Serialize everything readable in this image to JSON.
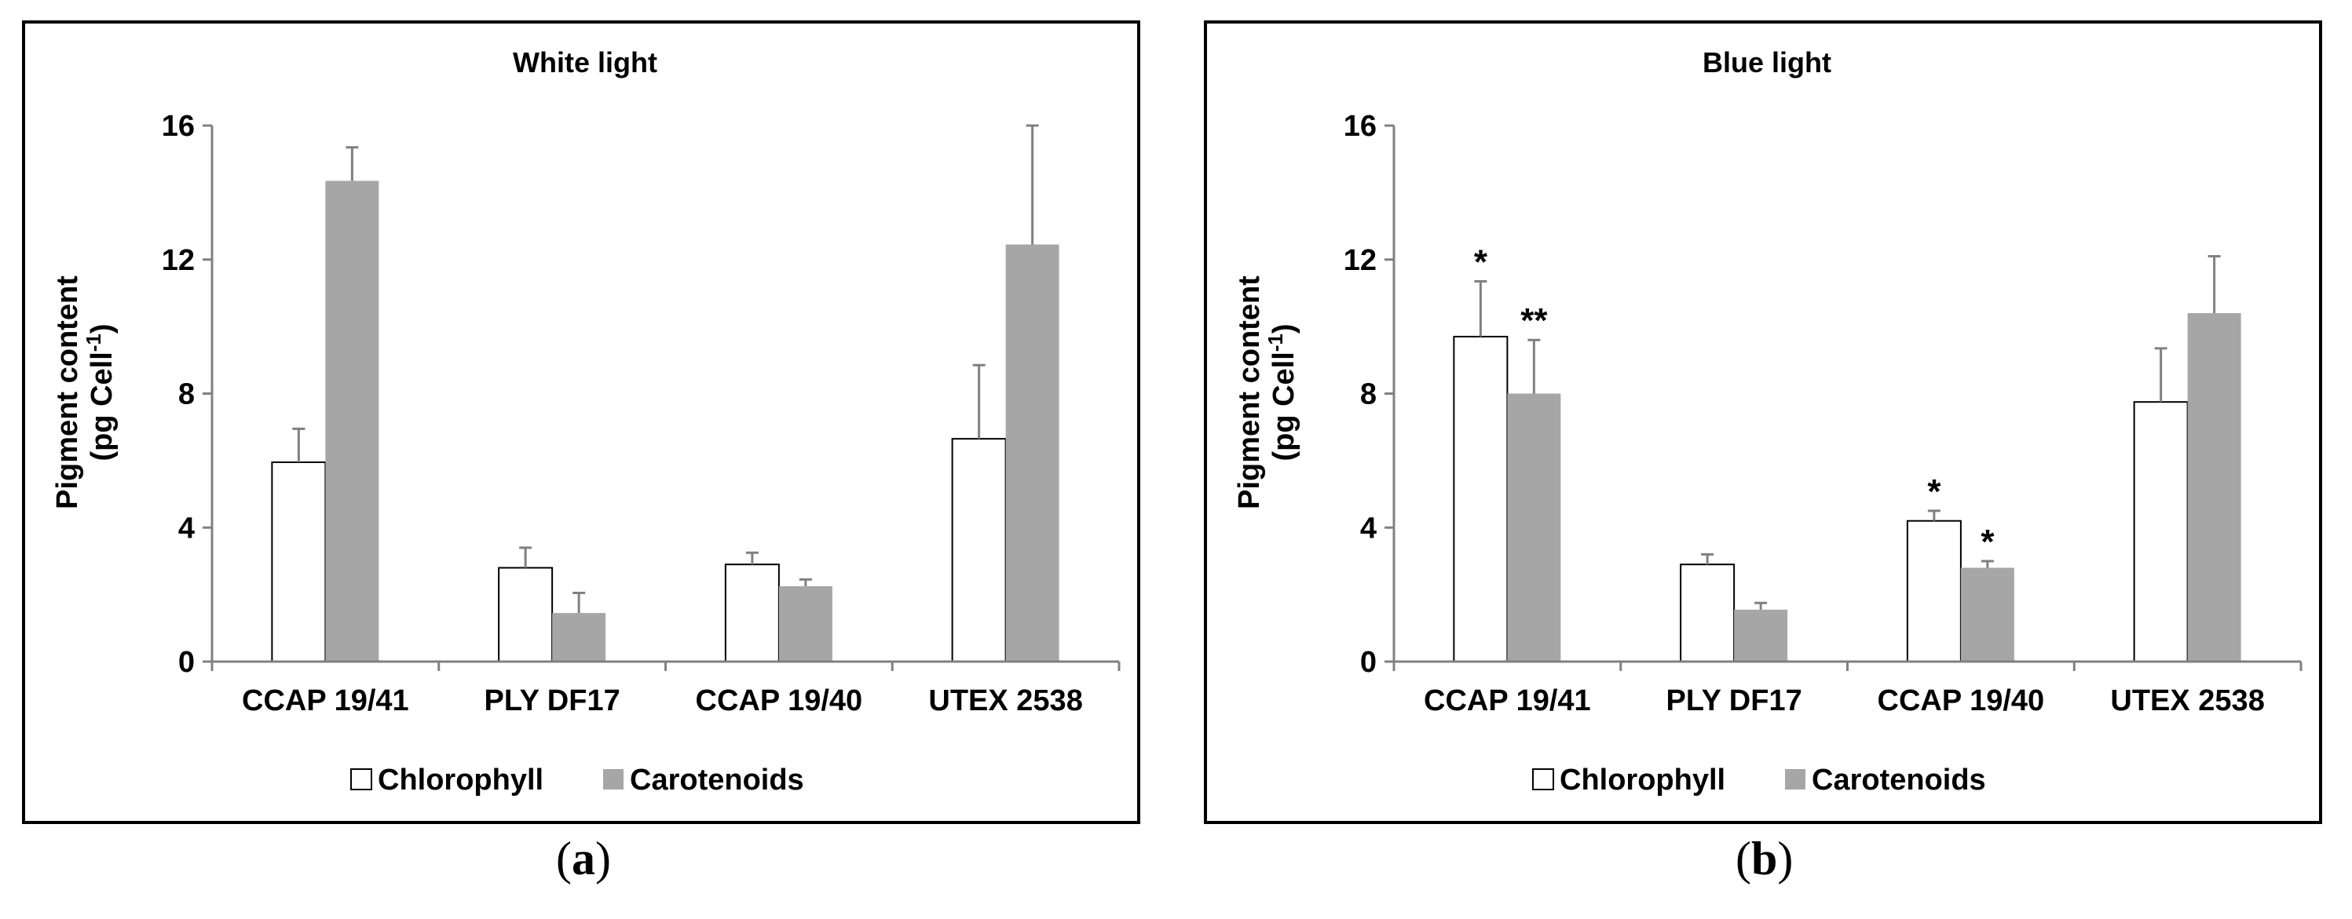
{
  "chart_data": [
    {
      "type": "bar",
      "title": "White light",
      "ylabel": "Pigment content",
      "ylabel_units": "(pg Cell",
      "ylabel_sup": "-1",
      "ylabel_close": ")",
      "ylim": [
        0,
        16
      ],
      "yticks": [
        0,
        4,
        8,
        12,
        16
      ],
      "categories": [
        "CCAP 19/41",
        "PLY DF17",
        "CCAP 19/40",
        "UTEX 2538"
      ],
      "series": [
        {
          "name": "Chlorophyll",
          "color": "#ffffff",
          "stroke": "#000000",
          "values": [
            5.95,
            2.8,
            2.9,
            6.65
          ],
          "errors": [
            1.0,
            0.6,
            0.35,
            2.2
          ],
          "sig": [
            "",
            "",
            "",
            ""
          ]
        },
        {
          "name": "Carotenoids",
          "color": "#a6a6a6",
          "stroke": "#a6a6a6",
          "values": [
            14.35,
            1.45,
            2.25,
            12.45
          ],
          "errors": [
            1.0,
            0.6,
            0.2,
            3.55
          ],
          "sig": [
            "",
            "",
            "",
            ""
          ]
        }
      ],
      "legend": "bottom",
      "caption_label": "a"
    },
    {
      "type": "bar",
      "title": "Blue light",
      "ylabel": "Pigment content",
      "ylabel_units": "(pg Cell",
      "ylabel_sup": "-1",
      "ylabel_close": ")",
      "ylim": [
        0,
        16
      ],
      "yticks": [
        0,
        4,
        8,
        12,
        16
      ],
      "categories": [
        "CCAP 19/41",
        "PLY DF17",
        "CCAP 19/40",
        "UTEX 2538"
      ],
      "series": [
        {
          "name": "Chlorophyll",
          "color": "#ffffff",
          "stroke": "#000000",
          "values": [
            9.7,
            2.9,
            4.2,
            7.75
          ],
          "errors": [
            1.65,
            0.3,
            0.3,
            1.6
          ],
          "sig": [
            "*",
            "",
            "*",
            ""
          ]
        },
        {
          "name": "Carotenoids",
          "color": "#a6a6a6",
          "stroke": "#a6a6a6",
          "values": [
            8.0,
            1.55,
            2.8,
            10.4
          ],
          "errors": [
            1.6,
            0.2,
            0.2,
            1.7
          ],
          "sig": [
            "**",
            "",
            "*",
            ""
          ]
        }
      ],
      "legend": "bottom",
      "caption_label": "b"
    }
  ]
}
